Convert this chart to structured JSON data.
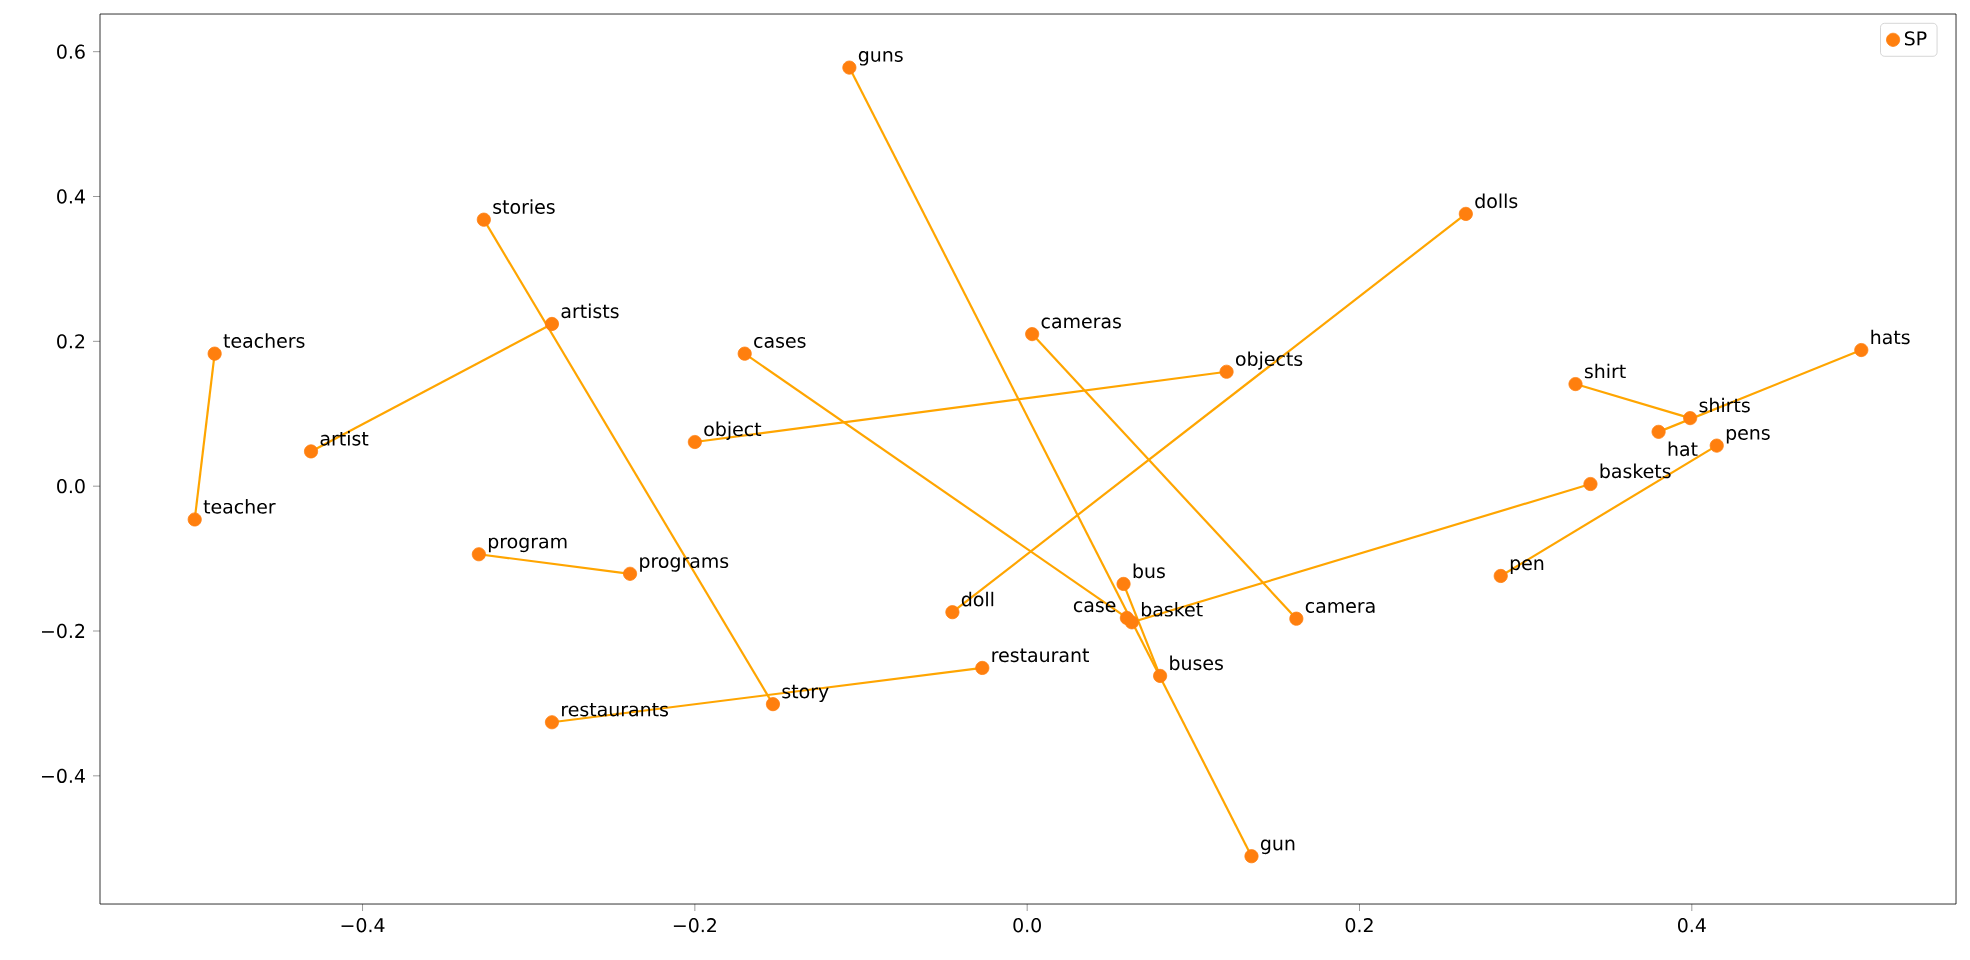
{
  "chart_data": {
    "type": "scatter",
    "xlim": [
      -0.558,
      0.559
    ],
    "ylim": [
      -0.577,
      0.652
    ],
    "xticks": [
      {
        "value": -0.4,
        "label": "−0.4"
      },
      {
        "value": -0.2,
        "label": "−0.2"
      },
      {
        "value": 0,
        "label": "0.0"
      },
      {
        "value": 0.2,
        "label": "0.2"
      },
      {
        "value": 0.4,
        "label": "0.4"
      }
    ],
    "yticks": [
      {
        "value": -0.4,
        "label": "−0.4"
      },
      {
        "value": -0.2,
        "label": "−0.2"
      },
      {
        "value": 0,
        "label": "0.0"
      },
      {
        "value": 0.2,
        "label": "0.2"
      },
      {
        "value": 0.4,
        "label": "0.4"
      },
      {
        "value": 0.6,
        "label": "0.6"
      }
    ],
    "legend": "top right",
    "grid": false,
    "series": [
      {
        "type": "line",
        "color": "#ffa500",
        "marker": "none",
        "x": [
          -0.107,
          0.135
        ],
        "values": [
          0.578,
          -0.511
        ]
      },
      {
        "type": "line",
        "color": "#ffa500",
        "marker": "none",
        "x": [
          -0.327,
          -0.153
        ],
        "values": [
          0.368,
          -0.301
        ]
      },
      {
        "type": "line",
        "color": "#ffa500",
        "marker": "none",
        "x": [
          0.264,
          -0.045
        ],
        "values": [
          0.376,
          -0.174
        ]
      },
      {
        "type": "line",
        "color": "#ffa500",
        "marker": "none",
        "x": [
          -0.286,
          -0.431
        ],
        "values": [
          0.224,
          0.048
        ]
      },
      {
        "type": "line",
        "color": "#ffa500",
        "marker": "none",
        "x": [
          -0.489,
          -0.501
        ],
        "values": [
          0.183,
          -0.046
        ]
      },
      {
        "type": "line",
        "color": "#ffa500",
        "marker": "none",
        "x": [
          -0.17,
          0.06
        ],
        "values": [
          0.183,
          -0.182
        ]
      },
      {
        "type": "line",
        "color": "#ffa500",
        "marker": "none",
        "x": [
          0.003,
          0.162
        ],
        "values": [
          0.21,
          -0.183
        ]
      },
      {
        "type": "line",
        "color": "#ffa500",
        "marker": "none",
        "x": [
          0.12,
          -0.2
        ],
        "values": [
          0.158,
          0.061
        ]
      },
      {
        "type": "line",
        "color": "#ffa500",
        "marker": "none",
        "x": [
          0.502,
          0.38
        ],
        "values": [
          0.188,
          0.075
        ]
      },
      {
        "type": "line",
        "color": "#ffa500",
        "marker": "none",
        "x": [
          0.399,
          0.33
        ],
        "values": [
          0.094,
          0.141
        ]
      },
      {
        "type": "line",
        "color": "#ffa500",
        "marker": "none",
        "x": [
          0.415,
          0.285
        ],
        "values": [
          0.056,
          -0.124
        ]
      },
      {
        "type": "line",
        "color": "#ffa500",
        "marker": "none",
        "x": [
          0.339,
          0.063
        ],
        "values": [
          0.003,
          -0.188
        ]
      },
      {
        "type": "line",
        "color": "#ffa500",
        "marker": "none",
        "x": [
          -0.239,
          -0.33
        ],
        "values": [
          -0.121,
          -0.094
        ]
      },
      {
        "type": "line",
        "color": "#ffa500",
        "marker": "none",
        "x": [
          0.058,
          0.08
        ],
        "values": [
          -0.135,
          -0.262
        ]
      },
      {
        "type": "line",
        "color": "#ffa500",
        "marker": "none",
        "x": [
          -0.286,
          -0.027
        ],
        "values": [
          -0.326,
          -0.251
        ]
      },
      {
        "type": "scatter",
        "name": "SP",
        "color": "#ff7f0e",
        "marker": "circle",
        "x": [
          -0.107,
          0.135,
          -0.327,
          -0.153,
          0.264,
          -0.045,
          -0.286,
          -0.431,
          -0.489,
          -0.501,
          -0.17,
          0.06,
          0.003,
          0.162,
          0.12,
          -0.2,
          0.502,
          0.38,
          0.399,
          0.33,
          0.415,
          0.285,
          0.339,
          0.063,
          -0.239,
          -0.33,
          0.058,
          0.08,
          -0.286,
          -0.027
        ],
        "values": [
          0.578,
          -0.511,
          0.368,
          -0.301,
          0.376,
          -0.174,
          0.224,
          0.048,
          0.183,
          -0.046,
          0.183,
          -0.182,
          0.21,
          -0.183,
          0.158,
          0.061,
          0.188,
          0.075,
          0.094,
          0.141,
          0.056,
          -0.124,
          0.003,
          -0.188,
          -0.121,
          -0.094,
          -0.135,
          -0.262,
          -0.326,
          -0.251
        ]
      }
    ],
    "annotations": [
      {
        "text": "guns",
        "x": -0.107,
        "y": 0.578
      },
      {
        "text": "gun",
        "x": 0.135,
        "y": -0.511
      },
      {
        "text": "stories",
        "x": -0.327,
        "y": 0.368
      },
      {
        "text": "story",
        "x": -0.153,
        "y": -0.301
      },
      {
        "text": "dolls",
        "x": 0.264,
        "y": 0.376
      },
      {
        "text": "doll",
        "x": -0.045,
        "y": -0.174
      },
      {
        "text": "artists",
        "x": -0.286,
        "y": 0.224
      },
      {
        "text": "artist",
        "x": -0.431,
        "y": 0.048
      },
      {
        "text": "teachers",
        "x": -0.489,
        "y": 0.183
      },
      {
        "text": "teacher",
        "x": -0.501,
        "y": -0.046
      },
      {
        "text": "cases",
        "x": -0.17,
        "y": 0.183
      },
      {
        "text": "case",
        "x": 0.06,
        "y": -0.182
      },
      {
        "text": "cameras",
        "x": 0.003,
        "y": 0.21
      },
      {
        "text": "camera",
        "x": 0.162,
        "y": -0.183
      },
      {
        "text": "objects",
        "x": 0.12,
        "y": 0.158
      },
      {
        "text": "object",
        "x": -0.2,
        "y": 0.061
      },
      {
        "text": "hats",
        "x": 0.502,
        "y": 0.188
      },
      {
        "text": "hat",
        "x": 0.38,
        "y": 0.075
      },
      {
        "text": "shirts",
        "x": 0.399,
        "y": 0.094
      },
      {
        "text": "shirt",
        "x": 0.33,
        "y": 0.141
      },
      {
        "text": "pens",
        "x": 0.415,
        "y": 0.056
      },
      {
        "text": "pen",
        "x": 0.285,
        "y": -0.124
      },
      {
        "text": "baskets",
        "x": 0.339,
        "y": 0.003
      },
      {
        "text": "basket",
        "x": 0.063,
        "y": -0.188
      },
      {
        "text": "programs",
        "x": -0.239,
        "y": -0.121
      },
      {
        "text": "program",
        "x": -0.33,
        "y": -0.094
      },
      {
        "text": "bus",
        "x": 0.058,
        "y": -0.135
      },
      {
        "text": "buses",
        "x": 0.08,
        "y": -0.262
      },
      {
        "text": "restaurants",
        "x": -0.286,
        "y": -0.326
      },
      {
        "text": "restaurant",
        "x": -0.027,
        "y": -0.251
      }
    ]
  }
}
